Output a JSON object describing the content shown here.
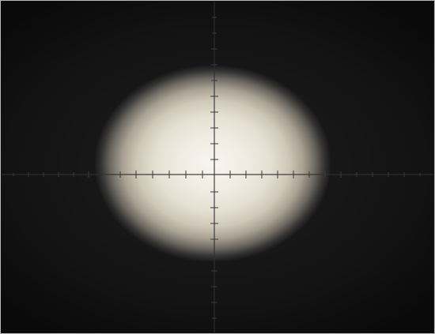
{
  "scene": {
    "subject": "crosshair-reticle",
    "center_brightness": "bright",
    "background": "#111111",
    "reticle_color": "#2f2f2f",
    "tick_color": "#3a3a3a"
  }
}
